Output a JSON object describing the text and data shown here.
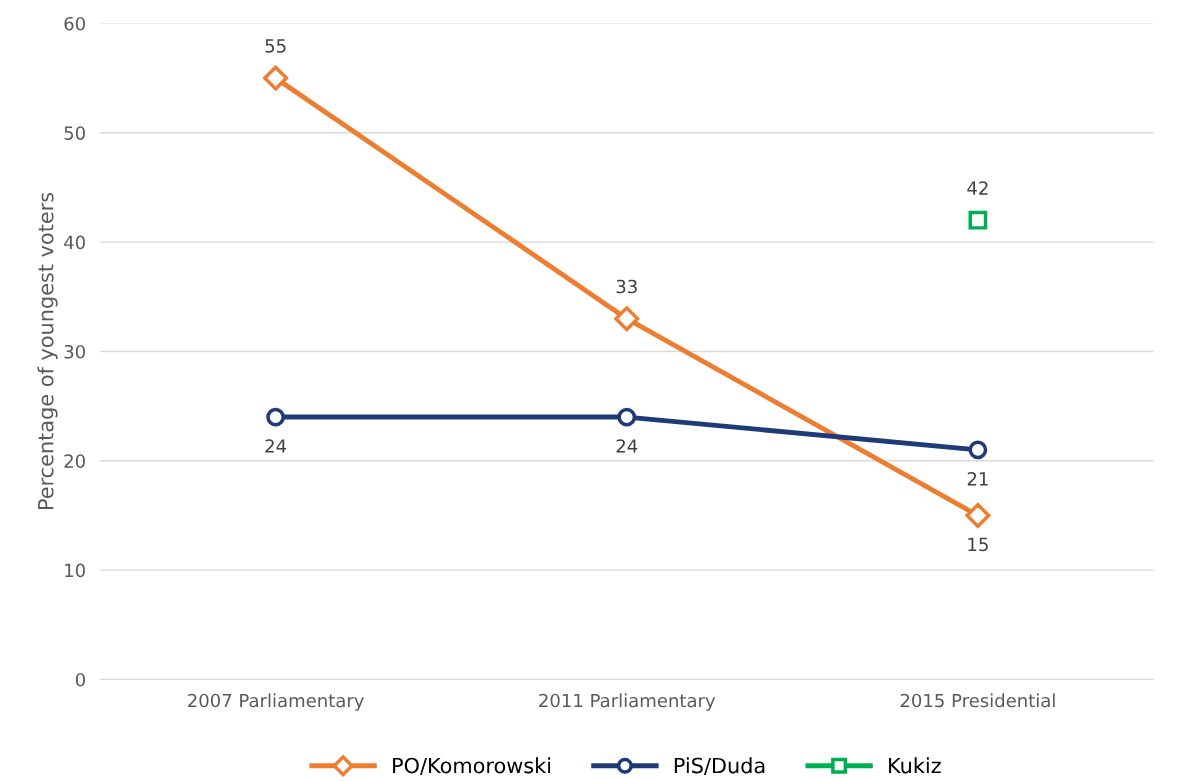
{
  "chart_data": {
    "type": "line",
    "ylabel": "Percentage of youngest voters",
    "categories": [
      "2007 Parliamentary",
      "2011 Parliamentary",
      "2015 Presidential"
    ],
    "series": [
      {
        "name": "PO/Komorowski",
        "color": "#ed7d31",
        "marker": "diamond",
        "values": [
          55,
          33,
          15
        ]
      },
      {
        "name": "PiS/Duda",
        "color": "#1f3a78",
        "marker": "circle",
        "values": [
          24,
          24,
          21
        ]
      },
      {
        "name": "Kukiz",
        "color": "#00b050",
        "marker": "square",
        "values": [
          null,
          null,
          42
        ]
      }
    ],
    "ylim": [
      0,
      60
    ],
    "yticks": [
      0,
      10,
      20,
      30,
      40,
      50,
      60
    ],
    "grid": "y",
    "legend": "bottom",
    "data_labels": true
  }
}
